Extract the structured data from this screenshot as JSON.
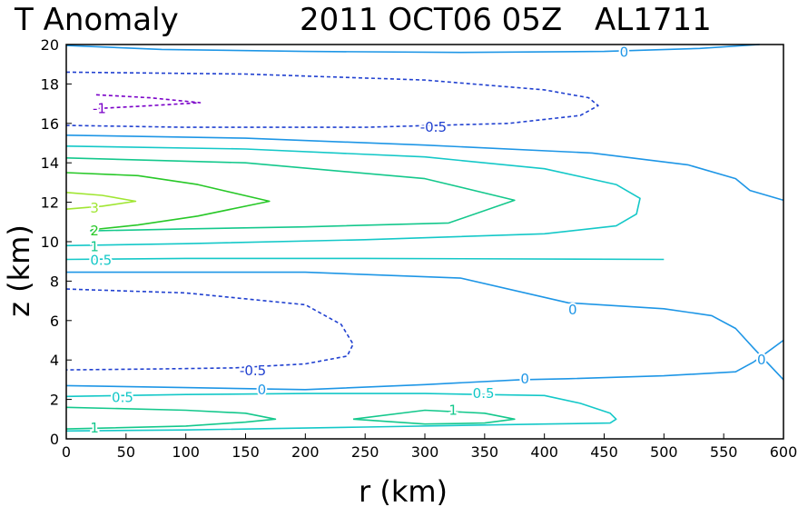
{
  "chart_data": {
    "type": "contour",
    "title": "T Anomaly",
    "subtitle": "2011 OCT06 05Z",
    "storm_id": "AL1711",
    "xlabel": "r (km)",
    "ylabel": "z (km)",
    "xlim": [
      0,
      600
    ],
    "ylim": [
      0,
      20
    ],
    "xticks": [
      0,
      50,
      100,
      150,
      200,
      250,
      300,
      350,
      400,
      450,
      500,
      550,
      600
    ],
    "yticks": [
      0,
      2,
      4,
      6,
      8,
      10,
      12,
      14,
      16,
      18,
      20
    ],
    "levels": [
      {
        "value": -1,
        "label": "-1",
        "color": "#7a00c8",
        "dashed": true
      },
      {
        "value": -0.5,
        "label": "-0.5",
        "color": "#2040d0",
        "dashed": true
      },
      {
        "value": 0,
        "label": "0",
        "color": "#1e96e6",
        "dashed": false
      },
      {
        "value": 0.5,
        "label": "0.5",
        "color": "#14c8c8",
        "dashed": false
      },
      {
        "value": 1,
        "label": "1",
        "color": "#14c88c",
        "dashed": false
      },
      {
        "value": 2,
        "label": "2",
        "color": "#28c828",
        "dashed": false
      },
      {
        "value": 3,
        "label": "3",
        "color": "#a0e632",
        "dashed": false
      }
    ],
    "contours": [
      {
        "level": "0",
        "points": [
          [
            0,
            19.95
          ],
          [
            80,
            19.75
          ],
          [
            200,
            19.65
          ],
          [
            330,
            19.6
          ],
          [
            450,
            19.65
          ],
          [
            530,
            19.8
          ],
          [
            580,
            20
          ]
        ]
      },
      {
        "level": "-0.5",
        "points": [
          [
            0,
            18.6
          ],
          [
            150,
            18.5
          ],
          [
            300,
            18.2
          ],
          [
            400,
            17.7
          ],
          [
            437,
            17.3
          ],
          [
            445,
            16.9
          ],
          [
            430,
            16.4
          ],
          [
            370,
            16.0
          ],
          [
            250,
            15.8
          ],
          [
            100,
            15.8
          ],
          [
            0,
            15.9
          ]
        ]
      },
      {
        "level": "-1",
        "points": [
          [
            25,
            17.45
          ],
          [
            70,
            17.3
          ],
          [
            112,
            17.05
          ],
          [
            70,
            16.9
          ],
          [
            25,
            16.75
          ]
        ]
      },
      {
        "level": "0",
        "points": [
          [
            0,
            15.4
          ],
          [
            150,
            15.25
          ],
          [
            300,
            14.9
          ],
          [
            440,
            14.5
          ],
          [
            520,
            13.9
          ],
          [
            560,
            13.2
          ],
          [
            572,
            12.6
          ],
          [
            600,
            12.1
          ]
        ]
      },
      {
        "level": "0.5",
        "points": [
          [
            0,
            14.85
          ],
          [
            150,
            14.7
          ],
          [
            300,
            14.3
          ],
          [
            400,
            13.7
          ],
          [
            460,
            12.9
          ],
          [
            480,
            12.2
          ],
          [
            477,
            11.4
          ],
          [
            460,
            10.8
          ],
          [
            400,
            10.4
          ],
          [
            250,
            10.1
          ],
          [
            100,
            9.9
          ],
          [
            0,
            9.8
          ]
        ]
      },
      {
        "level": "1",
        "points": [
          [
            0,
            14.25
          ],
          [
            150,
            14.0
          ],
          [
            300,
            13.2
          ],
          [
            375,
            12.1
          ],
          [
            320,
            10.95
          ],
          [
            200,
            10.75
          ],
          [
            100,
            10.65
          ],
          [
            20,
            10.55
          ]
        ]
      },
      {
        "level": "2",
        "points": [
          [
            0,
            13.5
          ],
          [
            60,
            13.35
          ],
          [
            110,
            12.9
          ],
          [
            170,
            12.05
          ],
          [
            110,
            11.3
          ],
          [
            60,
            10.85
          ],
          [
            20,
            10.6
          ]
        ]
      },
      {
        "level": "3",
        "points": [
          [
            0,
            12.5
          ],
          [
            30,
            12.35
          ],
          [
            58,
            12.05
          ],
          [
            30,
            11.8
          ],
          [
            0,
            11.65
          ]
        ]
      },
      {
        "level": "0.5",
        "points": [
          [
            0,
            9.1
          ],
          [
            100,
            9.15
          ],
          [
            250,
            9.15
          ],
          [
            500,
            9.1
          ]
        ]
      },
      {
        "level": "0",
        "points": [
          [
            0,
            8.45
          ],
          [
            200,
            8.45
          ],
          [
            330,
            8.15
          ],
          [
            420,
            6.9
          ],
          [
            500,
            6.6
          ],
          [
            540,
            6.25
          ],
          [
            560,
            5.6
          ],
          [
            575,
            4.6
          ],
          [
            600,
            3.0
          ]
        ]
      },
      {
        "level": "0",
        "points": [
          [
            600,
            5.0
          ],
          [
            582,
            4.2
          ],
          [
            575,
            3.9
          ],
          [
            560,
            3.4
          ],
          [
            500,
            3.2
          ],
          [
            420,
            3.05
          ],
          [
            380,
            3.0
          ],
          [
            300,
            2.75
          ],
          [
            200,
            2.5
          ],
          [
            100,
            2.6
          ],
          [
            0,
            2.7
          ]
        ]
      },
      {
        "level": "-0.5",
        "points": [
          [
            0,
            7.6
          ],
          [
            100,
            7.4
          ],
          [
            200,
            6.8
          ],
          [
            230,
            5.8
          ],
          [
            240,
            4.8
          ],
          [
            235,
            4.2
          ],
          [
            200,
            3.8
          ],
          [
            140,
            3.6
          ],
          [
            80,
            3.55
          ],
          [
            0,
            3.5
          ]
        ]
      },
      {
        "level": "0.5",
        "points": [
          [
            0,
            2.15
          ],
          [
            100,
            2.25
          ],
          [
            200,
            2.3
          ],
          [
            300,
            2.3
          ],
          [
            400,
            2.2
          ],
          [
            430,
            1.8
          ],
          [
            455,
            1.3
          ],
          [
            460,
            1.0
          ],
          [
            455,
            0.8
          ],
          [
            400,
            0.75
          ],
          [
            250,
            0.6
          ],
          [
            100,
            0.45
          ],
          [
            0,
            0.4
          ]
        ]
      },
      {
        "level": "1",
        "points": [
          [
            0,
            1.6
          ],
          [
            100,
            1.45
          ],
          [
            150,
            1.3
          ],
          [
            175,
            1.0
          ],
          [
            150,
            0.85
          ],
          [
            100,
            0.65
          ],
          [
            0,
            0.5
          ]
        ]
      },
      {
        "level": "1",
        "points": [
          [
            240,
            1.0
          ],
          [
            300,
            1.45
          ],
          [
            350,
            1.3
          ],
          [
            375,
            1.0
          ],
          [
            350,
            0.8
          ],
          [
            300,
            0.75
          ],
          [
            240,
            1.0
          ]
        ]
      }
    ],
    "contour_labels": [
      {
        "text": "0",
        "x": 463,
        "y": 19.6,
        "level": "0"
      },
      {
        "text": "-0.5",
        "x": 296,
        "y": 15.8,
        "level": "-0.5"
      },
      {
        "text": "-1",
        "x": 22,
        "y": 16.75,
        "level": "-1"
      },
      {
        "text": "3",
        "x": 20,
        "y": 11.7,
        "level": "3"
      },
      {
        "text": "2",
        "x": 20,
        "y": 10.55,
        "level": "2"
      },
      {
        "text": "1",
        "x": 20,
        "y": 9.75,
        "level": "1"
      },
      {
        "text": "0.5",
        "x": 20,
        "y": 9.05,
        "level": "0.5"
      },
      {
        "text": "0",
        "x": 420,
        "y": 6.55,
        "level": "0"
      },
      {
        "text": "-0.5",
        "x": 145,
        "y": 3.45,
        "level": "-0.5"
      },
      {
        "text": "0",
        "x": 160,
        "y": 2.5,
        "level": "0"
      },
      {
        "text": "0",
        "x": 380,
        "y": 3.05,
        "level": "0"
      },
      {
        "text": "0",
        "x": 578,
        "y": 4.0,
        "level": "0"
      },
      {
        "text": "0.5",
        "x": 38,
        "y": 2.1,
        "level": "0.5"
      },
      {
        "text": "0.5",
        "x": 340,
        "y": 2.3,
        "level": "0.5"
      },
      {
        "text": "1",
        "x": 320,
        "y": 1.45,
        "level": "1"
      },
      {
        "text": "1",
        "x": 20,
        "y": 0.55,
        "level": "1"
      }
    ]
  }
}
